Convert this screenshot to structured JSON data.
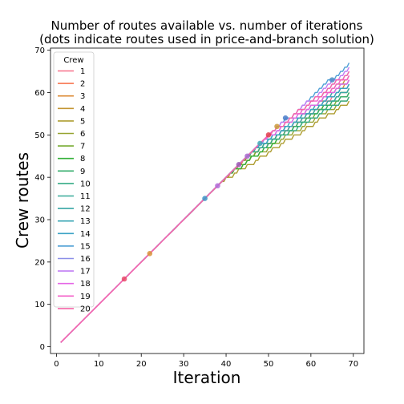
{
  "chart_data": {
    "type": "line",
    "title": "Number of routes available vs. number of iterations",
    "subtitle": "(dots indicate routes used in price-and-branch solution)",
    "xlabel": "Iteration",
    "ylabel": "Crew routes",
    "xlim": [
      -1.4,
      72.5
    ],
    "ylim": [
      -1.6,
      70.5
    ],
    "xticks": [
      0,
      10,
      20,
      30,
      40,
      50,
      60,
      70
    ],
    "yticks": [
      0,
      10,
      20,
      30,
      40,
      50,
      60,
      70
    ],
    "grid": false,
    "legend": {
      "title": "Crew",
      "placement": "top-left"
    },
    "x_range": [
      1,
      69
    ],
    "shared_until_iteration": 37,
    "series": [
      {
        "name": "1",
        "color": "#f77189",
        "diverge_at": 43,
        "final": 62
      },
      {
        "name": "2",
        "color": "#f7754f",
        "diverge_at": 45,
        "final": 61
      },
      {
        "name": "3",
        "color": "#dc8932",
        "diverge_at": 43,
        "final": 63
      },
      {
        "name": "4",
        "color": "#c39532",
        "diverge_at": 40,
        "final": 64
      },
      {
        "name": "5",
        "color": "#ae9d31",
        "diverge_at": 39,
        "final": 58
      },
      {
        "name": "6",
        "color": "#97a431",
        "diverge_at": 42,
        "final": 59
      },
      {
        "name": "7",
        "color": "#77ab31",
        "diverge_at": 44,
        "final": 60
      },
      {
        "name": "8",
        "color": "#33b039",
        "diverge_at": 41,
        "final": 61
      },
      {
        "name": "9",
        "color": "#35ad6c",
        "diverge_at": 46,
        "final": 60
      },
      {
        "name": "10",
        "color": "#36ab86",
        "diverge_at": 45,
        "final": 59
      },
      {
        "name": "11",
        "color": "#37a998",
        "diverge_at": 46,
        "final": 62
      },
      {
        "name": "12",
        "color": "#38a7a6",
        "diverge_at": 47,
        "final": 61
      },
      {
        "name": "13",
        "color": "#39a5b4",
        "diverge_at": 48,
        "final": 63
      },
      {
        "name": "14",
        "color": "#3ba3c5",
        "diverge_at": 47,
        "final": 62
      },
      {
        "name": "15",
        "color": "#50a0d6",
        "diverge_at": 49,
        "final": 67
      },
      {
        "name": "16",
        "color": "#8c8fe8",
        "diverge_at": 48,
        "final": 65
      },
      {
        "name": "17",
        "color": "#c17cf4",
        "diverge_at": 50,
        "final": 66
      },
      {
        "name": "18",
        "color": "#e565e6",
        "diverge_at": 49,
        "final": 63
      },
      {
        "name": "19",
        "color": "#f35fc8",
        "diverge_at": 51,
        "final": 64
      },
      {
        "name": "20",
        "color": "#f567a9",
        "diverge_at": 50,
        "final": 65
      }
    ],
    "dots": [
      {
        "x": 16,
        "y": 16,
        "color": "#e84a6a"
      },
      {
        "x": 22,
        "y": 22,
        "color": "#d9933b"
      },
      {
        "x": 35,
        "y": 35,
        "color": "#3e96c8"
      },
      {
        "x": 38,
        "y": 38,
        "color": "#b36fd9"
      },
      {
        "x": 43,
        "y": 43,
        "color": "#9b59b6"
      },
      {
        "x": 45,
        "y": 45,
        "color": "#a86bd0"
      },
      {
        "x": 48,
        "y": 48,
        "color": "#3ea8b8"
      },
      {
        "x": 50,
        "y": 50,
        "color": "#e0404e"
      },
      {
        "x": 52,
        "y": 52,
        "color": "#c99a3a"
      },
      {
        "x": 54,
        "y": 54,
        "color": "#4a7cc9"
      },
      {
        "x": 65,
        "y": 63,
        "color": "#4b8ec6"
      }
    ]
  }
}
